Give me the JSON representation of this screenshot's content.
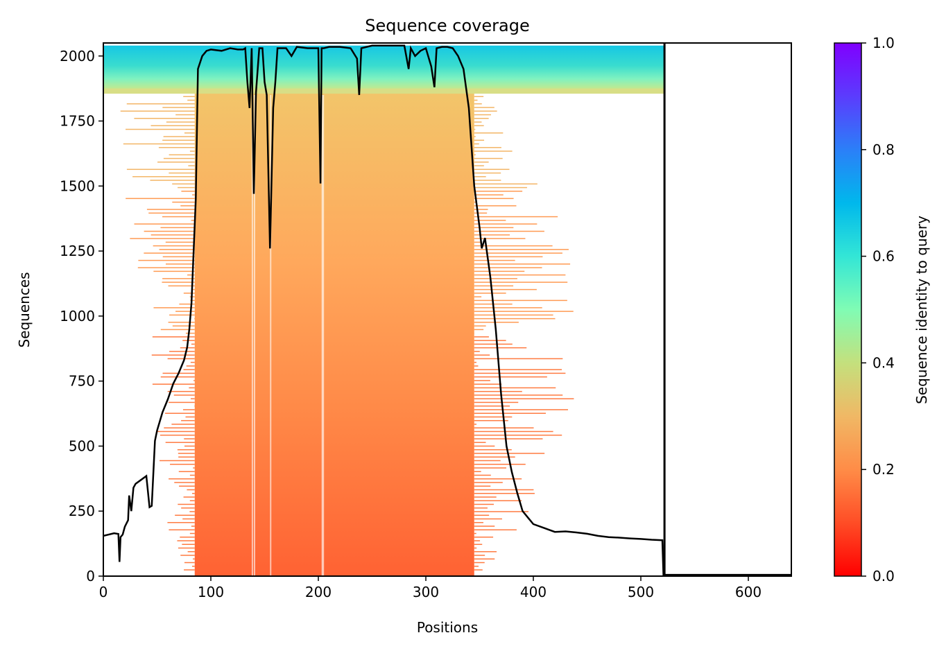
{
  "chart_data": {
    "type": "heatmap",
    "title": "Sequence coverage",
    "xlabel": "Positions",
    "ylabel": "Sequences",
    "xlim": [
      0,
      640
    ],
    "ylim": [
      0,
      2050
    ],
    "x_ticks": [
      "0",
      "100",
      "200",
      "300",
      "400",
      "500",
      "600"
    ],
    "y_ticks": [
      "0",
      "250",
      "500",
      "750",
      "1000",
      "1250",
      "1500",
      "1750",
      "2000"
    ],
    "query_end_position": 522,
    "colorbar": {
      "label": "Sequence identity to query",
      "range": [
        0.0,
        1.0
      ],
      "ticks": [
        "0.0",
        "0.2",
        "0.4",
        "0.6",
        "0.8",
        "1.0"
      ],
      "colormap": "rainbow_r"
    },
    "series": [
      {
        "type": "line",
        "color": "#000000",
        "x": [
          0,
          10,
          14,
          15,
          16,
          18,
          20,
          23,
          24,
          26,
          28,
          30,
          35,
          40,
          43,
          45,
          48,
          50,
          55,
          60,
          65,
          70,
          75,
          78,
          80,
          82,
          84,
          86,
          88,
          92,
          96,
          100,
          110,
          118,
          125,
          130,
          132,
          134,
          136,
          138,
          140,
          142,
          145,
          148,
          150,
          152,
          155,
          158,
          160,
          162,
          165,
          170,
          175,
          180,
          190,
          200,
          202,
          203,
          205,
          210,
          220,
          230,
          236,
          238,
          240,
          245,
          250,
          260,
          270,
          280,
          284,
          286,
          290,
          295,
          300,
          305,
          308,
          310,
          315,
          320,
          325,
          330,
          335,
          340,
          345,
          350,
          352,
          355,
          360,
          365,
          370,
          375,
          380,
          385,
          390,
          400,
          410,
          420,
          430,
          440,
          450,
          460,
          470,
          480,
          490,
          500,
          510,
          520,
          521,
          522,
          530,
          560,
          600,
          640
        ],
        "y": [
          155,
          165,
          162,
          55,
          150,
          160,
          190,
          215,
          310,
          250,
          340,
          355,
          370,
          385,
          265,
          270,
          520,
          560,
          630,
          680,
          740,
          780,
          830,
          880,
          950,
          1050,
          1250,
          1450,
          1950,
          2000,
          2020,
          2025,
          2020,
          2030,
          2025,
          2025,
          2030,
          1900,
          1800,
          2030,
          1470,
          1860,
          2030,
          2030,
          1900,
          1850,
          1260,
          1800,
          1900,
          2030,
          2030,
          2030,
          2000,
          2035,
          2030,
          2030,
          1510,
          2030,
          2030,
          2035,
          2035,
          2030,
          1990,
          1850,
          2030,
          2035,
          2040,
          2040,
          2040,
          2040,
          1950,
          2030,
          2000,
          2020,
          2030,
          1960,
          1880,
          2030,
          2035,
          2035,
          2030,
          2000,
          1950,
          1800,
          1500,
          1340,
          1260,
          1300,
          1150,
          950,
          700,
          500,
          400,
          320,
          250,
          200,
          185,
          170,
          172,
          168,
          163,
          155,
          150,
          148,
          145,
          143,
          140,
          138,
          5,
          5,
          5,
          5,
          5,
          5
        ]
      }
    ]
  }
}
